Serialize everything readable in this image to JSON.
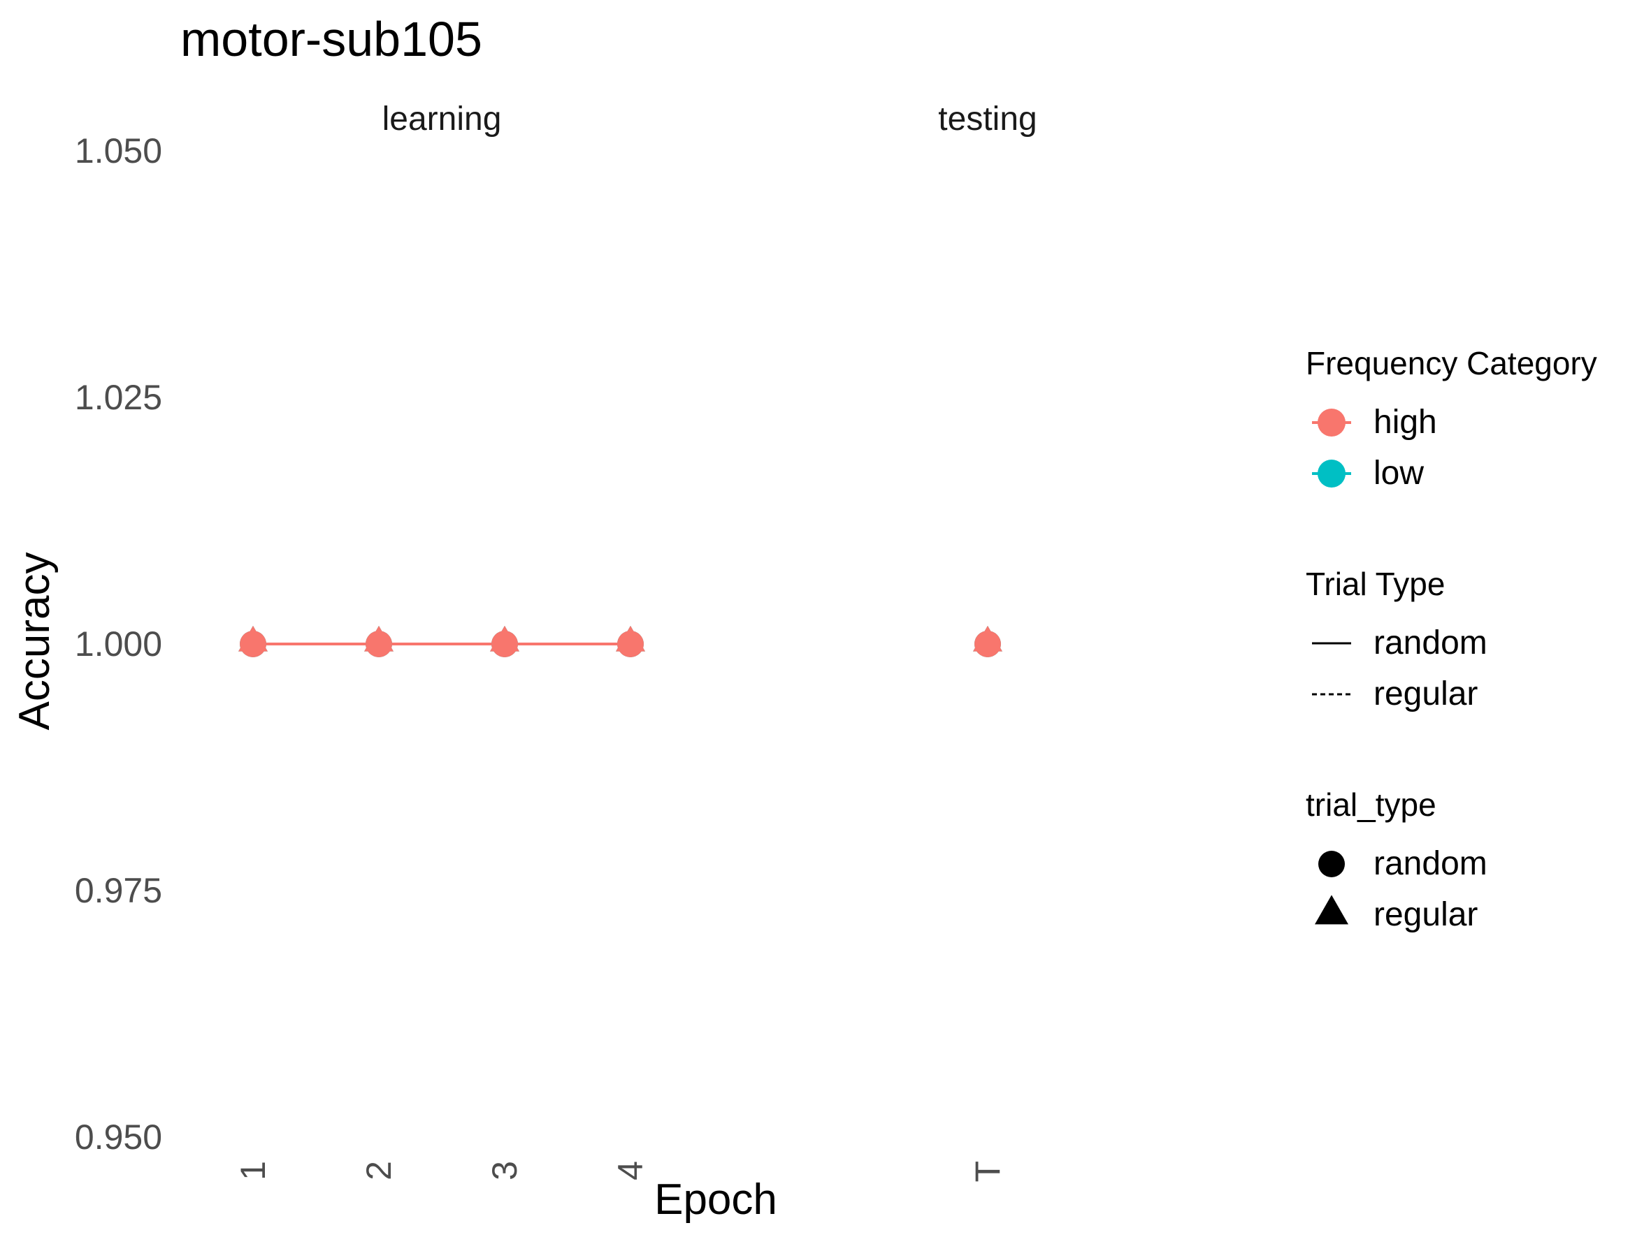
{
  "chart_data": {
    "type": "line",
    "title": "motor-sub105",
    "xlabel": "Epoch",
    "ylabel": "Accuracy",
    "ylim": [
      0.95,
      1.05
    ],
    "yticks": [
      "0.950",
      "0.975",
      "1.000",
      "1.025",
      "1.050"
    ],
    "grid": false,
    "legend_position": "right",
    "panels": [
      {
        "label": "learning",
        "x": [
          "1",
          "2",
          "3",
          "4"
        ]
      },
      {
        "label": "testing",
        "x": [
          "T"
        ]
      }
    ],
    "series": [
      {
        "name": "high",
        "trial_type": "random",
        "color": "#F8766D",
        "shape": "circle",
        "panel_values": {
          "learning": [
            1.0,
            1.0,
            1.0,
            1.0
          ],
          "testing": [
            1.0
          ]
        }
      },
      {
        "name": "high",
        "trial_type": "regular",
        "color": "#F8766D",
        "shape": "triangle",
        "panel_values": {
          "learning": [
            1.0,
            1.0,
            1.0,
            1.0
          ],
          "testing": [
            1.0
          ]
        }
      },
      {
        "name": "low",
        "trial_type": "random",
        "color": "#00BFC4",
        "shape": "circle",
        "panel_values": {
          "learning": [
            1.0,
            1.0,
            1.0,
            1.0
          ],
          "testing": [
            1.0
          ]
        }
      },
      {
        "name": "low",
        "trial_type": "regular",
        "color": "#00BFC4",
        "shape": "triangle",
        "panel_values": {
          "learning": [
            1.0,
            1.0,
            1.0,
            1.0
          ],
          "testing": [
            1.0
          ]
        }
      }
    ],
    "draw_order": [
      "low|random",
      "low|regular",
      "high|random",
      "high|regular"
    ],
    "legends": [
      {
        "title": "Frequency Category",
        "kind": "color",
        "items": [
          {
            "label": "high",
            "color": "#F8766D"
          },
          {
            "label": "low",
            "color": "#00BFC4"
          }
        ]
      },
      {
        "title": "Trial Type",
        "kind": "linetype",
        "items": [
          {
            "label": "random",
            "linetype": "solid"
          },
          {
            "label": "regular",
            "linetype": "dashed"
          }
        ]
      },
      {
        "title": "trial_type",
        "kind": "shape",
        "items": [
          {
            "label": "random",
            "shape": "circle"
          },
          {
            "label": "regular",
            "shape": "triangle"
          }
        ]
      }
    ]
  }
}
